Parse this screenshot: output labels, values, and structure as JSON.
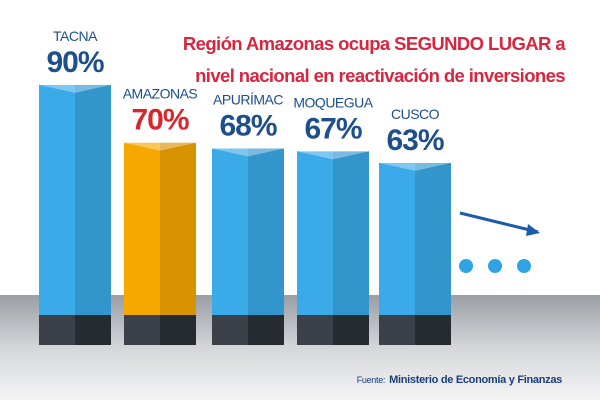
{
  "chart_data": {
    "type": "bar",
    "title": "Región Amazonas ocupa SEGUNDO LUGAR a nivel nacional en reactivación de inversiones",
    "categories": [
      "TACNA",
      "AMAZONAS",
      "APURÍMAC",
      "MOQUEGUA",
      "CUSCO"
    ],
    "values": [
      90,
      70,
      68,
      67,
      63
    ],
    "value_labels": [
      "90%",
      "70%",
      "68%",
      "67%",
      "63%"
    ],
    "colors": [
      "#3aaae9",
      "#f5a800",
      "#3aaae9",
      "#3aaae9",
      "#3aaae9"
    ],
    "label_colors": [
      "#1c4f8c",
      "#d8262c",
      "#1c4f8c",
      "#1c4f8c",
      "#1c4f8c"
    ],
    "ylim": [
      0,
      100
    ],
    "source_label": "Fuente:",
    "source": "Ministerio de Economía y Finanzas"
  }
}
